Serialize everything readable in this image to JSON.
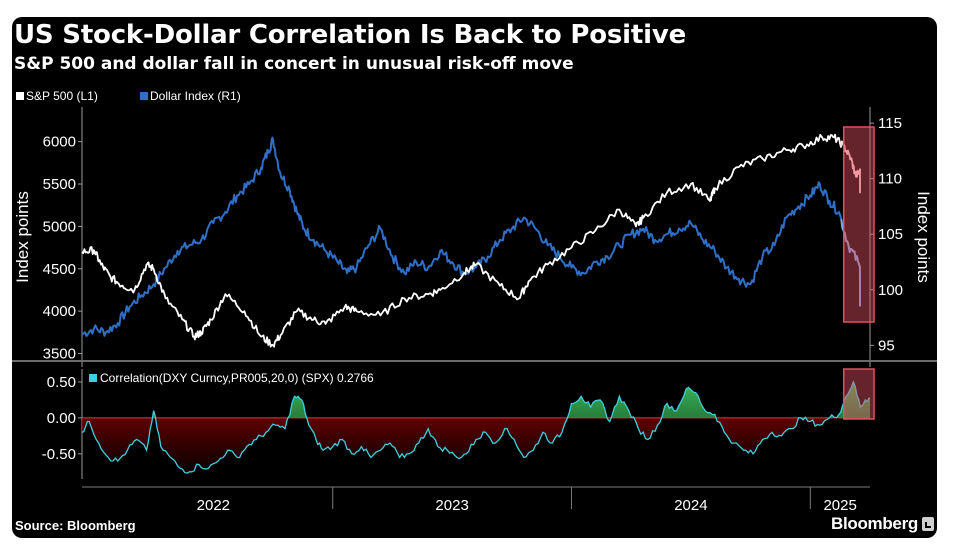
{
  "header": {
    "title": "US Stock-Dollar Correlation Is Back to Positive",
    "subtitle": "S&P 500 and dollar fall in concert in unusual risk-off move"
  },
  "footer": {
    "source": "Source: Bloomberg",
    "brand": "Bloomberg"
  },
  "colors": {
    "background": "#000000",
    "spx": "#ffffff",
    "dxy": "#2f6fc7",
    "correlation": "#3fd0e0",
    "negative_fill": "#a00000",
    "positive_fill": "#2aa84a",
    "highlight": "#e05060"
  },
  "chart_data": [
    {
      "type": "line",
      "legend": [
        "S&P 500 (L1)",
        "Dollar Index (R1)"
      ],
      "xlabel": "",
      "ylabel_left": "Index points",
      "ylabel_right": "Index points",
      "ylim_left": [
        3400,
        6350
      ],
      "ylim_right": [
        93.5,
        116
      ],
      "yticks_left": [
        3500,
        4000,
        4500,
        5000,
        5500,
        6000
      ],
      "yticks_right": [
        95,
        100,
        105,
        110,
        115
      ],
      "x_ticks": [
        "2022",
        "2023",
        "2024",
        "2025"
      ],
      "x_range": [
        2021.95,
        2025.25
      ],
      "grid": false,
      "legend_position": "top-left",
      "highlight_region": [
        2025.14,
        2025.25
      ],
      "series": [
        {
          "name": "S&P 500 (L1)",
          "x": [
            2021.95,
            2022.0,
            2022.03,
            2022.07,
            2022.12,
            2022.17,
            2022.22,
            2022.25,
            2022.3,
            2022.37,
            2022.42,
            2022.45,
            2022.49,
            2022.55,
            2022.63,
            2022.7,
            2022.75,
            2022.79,
            2022.85,
            2022.92,
            2022.97,
            2023.05,
            2023.1,
            2023.2,
            2023.3,
            2023.4,
            2023.45,
            2023.55,
            2023.6,
            2023.7,
            2023.78,
            2023.82,
            2023.9,
            2024.0,
            2024.1,
            2024.2,
            2024.27,
            2024.3,
            2024.4,
            2024.5,
            2024.58,
            2024.6,
            2024.7,
            2024.8,
            2024.9,
            2024.97,
            2025.05,
            2025.1,
            2025.14,
            2025.17,
            2025.19,
            2025.21,
            2025.23,
            2025.25
          ],
          "values": [
            4700,
            4720,
            4550,
            4400,
            4300,
            4250,
            4550,
            4500,
            4150,
            3900,
            3700,
            3750,
            3900,
            4200,
            4000,
            3700,
            3600,
            3750,
            4000,
            3900,
            3850,
            4050,
            4000,
            3950,
            4150,
            4200,
            4250,
            4450,
            4550,
            4300,
            4150,
            4350,
            4550,
            4750,
            4950,
            5200,
            5000,
            5100,
            5400,
            5500,
            5300,
            5450,
            5700,
            5800,
            5900,
            5950,
            6050,
            6050,
            5950,
            5800,
            5600,
            5650,
            5400,
            5550
          ]
        },
        {
          "name": "Dollar Index (R1)",
          "x": [
            2021.95,
            2022.0,
            2022.05,
            2022.1,
            2022.15,
            2022.2,
            2022.25,
            2022.3,
            2022.35,
            2022.4,
            2022.45,
            2022.5,
            2022.55,
            2022.6,
            2022.65,
            2022.7,
            2022.73,
            2022.75,
            2022.78,
            2022.82,
            2022.85,
            2022.88,
            2022.92,
            2022.97,
            2023.02,
            2023.06,
            2023.1,
            2023.15,
            2023.2,
            2023.25,
            2023.3,
            2023.35,
            2023.4,
            2023.45,
            2023.5,
            2023.55,
            2023.6,
            2023.65,
            2023.7,
            2023.75,
            2023.8,
            2023.85,
            2023.9,
            2023.95,
            2024.0,
            2024.05,
            2024.1,
            2024.15,
            2024.2,
            2024.25,
            2024.3,
            2024.35,
            2024.4,
            2024.45,
            2024.5,
            2024.55,
            2024.6,
            2024.65,
            2024.7,
            2024.75,
            2024.8,
            2024.85,
            2024.9,
            2024.95,
            2025.0,
            2025.04,
            2025.08,
            2025.12,
            2025.16,
            2025.2,
            2025.23,
            2025.25
          ],
          "values": [
            96.0,
            96.5,
            96.2,
            97.0,
            98.5,
            99.5,
            100.5,
            102.0,
            103.5,
            104.0,
            104.5,
            106.0,
            107.0,
            108.5,
            109.5,
            111.0,
            112.5,
            113.5,
            110.5,
            109.0,
            107.0,
            105.5,
            104.5,
            103.5,
            102.5,
            101.5,
            102.0,
            104.0,
            105.5,
            103.0,
            101.5,
            102.5,
            102.0,
            103.5,
            102.5,
            101.5,
            102.0,
            103.0,
            104.5,
            105.5,
            106.5,
            105.5,
            104.0,
            103.0,
            102.0,
            101.5,
            102.5,
            103.0,
            104.0,
            105.0,
            105.5,
            104.5,
            105.0,
            105.5,
            106.0,
            104.5,
            103.5,
            102.0,
            101.0,
            100.5,
            103.0,
            104.0,
            106.5,
            107.5,
            108.5,
            109.5,
            108.0,
            107.0,
            104.0,
            102.5,
            100.0,
            98.5
          ]
        }
      ]
    },
    {
      "type": "area",
      "legend": [
        "Correlation(DXY Curncy,PR005,20,0) (SPX) 0.2766"
      ],
      "last_value": 0.2766,
      "ylim": [
        -0.85,
        0.68
      ],
      "yticks": [
        -0.5,
        0.0,
        0.5
      ],
      "ytick_labels": [
        "-0.50",
        "0.00",
        "0.50"
      ],
      "x_range": [
        2021.95,
        2025.25
      ],
      "grid": false,
      "highlight_region": [
        2025.14,
        2025.25
      ],
      "series": [
        {
          "name": "Correlation(DXY Curncy,PR005,20,0) (SPX)",
          "x": [
            2021.95,
            2021.98,
            2022.02,
            2022.06,
            2022.1,
            2022.14,
            2022.18,
            2022.22,
            2022.25,
            2022.28,
            2022.32,
            2022.36,
            2022.4,
            2022.44,
            2022.48,
            2022.52,
            2022.56,
            2022.6,
            2022.64,
            2022.68,
            2022.72,
            2022.76,
            2022.8,
            2022.84,
            2022.87,
            2022.9,
            2022.93,
            2022.96,
            2023.0,
            2023.04,
            2023.08,
            2023.12,
            2023.16,
            2023.2,
            2023.24,
            2023.28,
            2023.32,
            2023.36,
            2023.4,
            2023.44,
            2023.48,
            2023.52,
            2023.56,
            2023.6,
            2023.64,
            2023.68,
            2023.72,
            2023.76,
            2023.8,
            2023.84,
            2023.88,
            2023.92,
            2023.96,
            2024.0,
            2024.04,
            2024.08,
            2024.12,
            2024.16,
            2024.2,
            2024.24,
            2024.28,
            2024.32,
            2024.36,
            2024.4,
            2024.44,
            2024.48,
            2024.52,
            2024.56,
            2024.6,
            2024.64,
            2024.68,
            2024.72,
            2024.76,
            2024.8,
            2024.84,
            2024.88,
            2024.92,
            2024.96,
            2025.0,
            2025.04,
            2025.08,
            2025.12,
            2025.15,
            2025.18,
            2025.21,
            2025.23,
            2025.25
          ],
          "values": [
            -0.2,
            -0.05,
            -0.35,
            -0.55,
            -0.6,
            -0.45,
            -0.3,
            -0.45,
            0.1,
            -0.4,
            -0.55,
            -0.7,
            -0.75,
            -0.65,
            -0.7,
            -0.6,
            -0.45,
            -0.55,
            -0.4,
            -0.3,
            -0.2,
            -0.1,
            -0.15,
            0.3,
            0.25,
            -0.1,
            -0.3,
            -0.45,
            -0.4,
            -0.3,
            -0.5,
            -0.4,
            -0.55,
            -0.45,
            -0.35,
            -0.55,
            -0.5,
            -0.35,
            -0.15,
            -0.4,
            -0.45,
            -0.55,
            -0.5,
            -0.3,
            -0.2,
            -0.35,
            -0.15,
            -0.3,
            -0.55,
            -0.45,
            -0.2,
            -0.35,
            -0.2,
            0.2,
            0.3,
            0.15,
            0.25,
            -0.05,
            0.3,
            0.1,
            -0.15,
            -0.3,
            -0.1,
            0.2,
            0.1,
            0.4,
            0.35,
            0.1,
            0.05,
            -0.2,
            -0.35,
            -0.45,
            -0.5,
            -0.3,
            -0.2,
            -0.25,
            -0.15,
            0.0,
            -0.05,
            -0.1,
            0.0,
            0.05,
            0.3,
            0.5,
            0.15,
            0.25,
            0.28
          ]
        }
      ]
    }
  ]
}
